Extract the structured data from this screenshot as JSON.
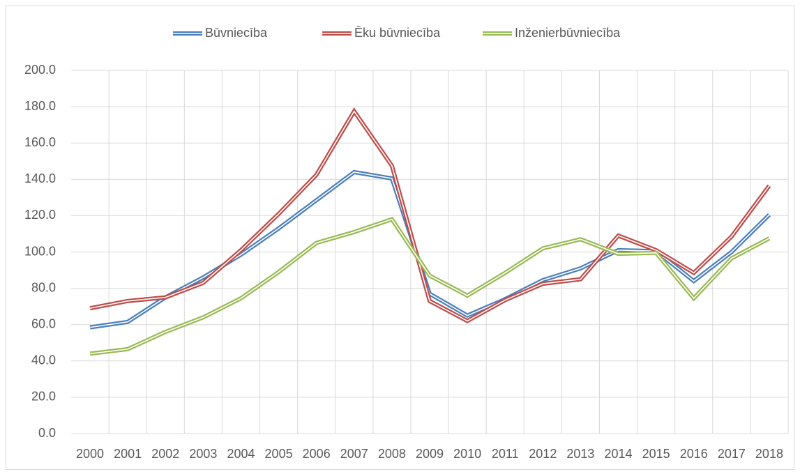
{
  "chart_data": {
    "type": "line",
    "categories": [
      "2000",
      "2001",
      "2002",
      "2003",
      "2004",
      "2005",
      "2006",
      "2007",
      "2008",
      "2009",
      "2010",
      "2011",
      "2012",
      "2013",
      "2014",
      "2015",
      "2016",
      "2017",
      "2018"
    ],
    "series": [
      {
        "name": "Būvniecība",
        "color": "#4a7ebb",
        "values": [
          58.5,
          61.5,
          75,
          86,
          98.5,
          113,
          128.5,
          144,
          140.5,
          77,
          65,
          74,
          84.5,
          91,
          101,
          100.5,
          84,
          100,
          120.5
        ]
      },
      {
        "name": "Ēku būvniecība",
        "color": "#be4b48",
        "values": [
          69,
          73,
          75,
          83,
          101,
          121,
          142.5,
          177.5,
          147.5,
          73,
          62,
          73.5,
          82.5,
          85,
          109,
          101,
          88.5,
          108.5,
          136.5
        ]
      },
      {
        "name": "Inženierbūvniecība",
        "color": "#98b954",
        "values": [
          44,
          46.5,
          56,
          64,
          74.5,
          89,
          105,
          111,
          118,
          87,
          76,
          88.5,
          102,
          107,
          99,
          99.5,
          74.5,
          96.5,
          107.5
        ]
      }
    ],
    "ylim": [
      0,
      200
    ],
    "yticks": [
      {
        "value": 0,
        "label": "0.0"
      },
      {
        "value": 20,
        "label": "20.0"
      },
      {
        "value": 40,
        "label": "40.0"
      },
      {
        "value": 60,
        "label": "60.0"
      },
      {
        "value": 80,
        "label": "80.0"
      },
      {
        "value": 100,
        "label": "100.0"
      },
      {
        "value": 120,
        "label": "120.0"
      },
      {
        "value": 140,
        "label": "140.0"
      },
      {
        "value": 160,
        "label": "160.0"
      },
      {
        "value": 180,
        "label": "180.0"
      },
      {
        "value": 200,
        "label": "200.0"
      }
    ],
    "grid": true,
    "legend": "top"
  }
}
